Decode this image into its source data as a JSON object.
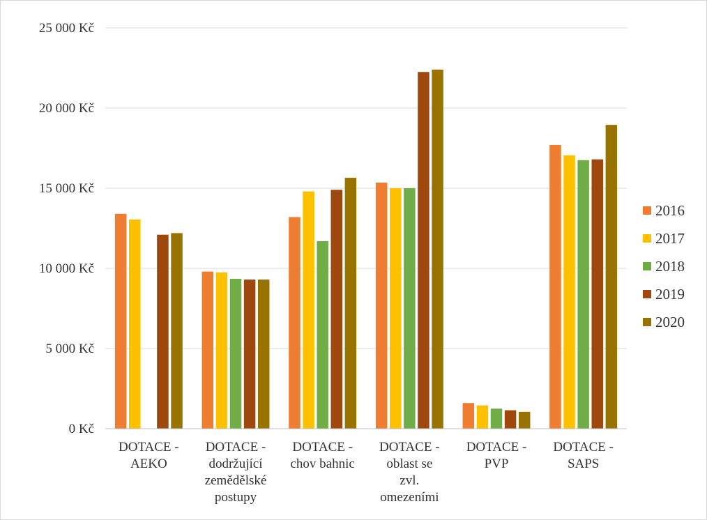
{
  "chart_data": {
    "type": "bar",
    "categories": [
      [
        "DOTACE -",
        "AEKO"
      ],
      [
        "DOTACE -",
        "dodržující",
        "zemědělské",
        "postupy"
      ],
      [
        "DOTACE -",
        "chov bahnic"
      ],
      [
        "DOTACE -",
        "oblast se",
        "zvl.",
        "omezeními"
      ],
      [
        "DOTACE -",
        "PVP"
      ],
      [
        "DOTACE -",
        "SAPS"
      ]
    ],
    "series": [
      {
        "name": "2016",
        "color": "#ed7d31",
        "values": [
          13400,
          9800,
          13200,
          15350,
          1600,
          17700
        ]
      },
      {
        "name": "2017",
        "color": "#ffc000",
        "values": [
          13050,
          9750,
          14800,
          15000,
          1450,
          17050
        ]
      },
      {
        "name": "2018",
        "color": "#70ad47",
        "values": [
          null,
          9350,
          11700,
          15000,
          1250,
          16750
        ]
      },
      {
        "name": "2019",
        "color": "#9e480e",
        "values": [
          12100,
          9300,
          14900,
          22250,
          1150,
          16800
        ]
      },
      {
        "name": "2020",
        "color": "#997300",
        "values": [
          12200,
          9300,
          15650,
          22400,
          1050,
          18950
        ]
      }
    ],
    "yticks": [
      "0 Kč",
      "5 000 Kč",
      "10 000 Kč",
      "15 000 Kč",
      "20 000 Kč",
      "25 000 Kč"
    ],
    "ylim": [
      0,
      25000
    ],
    "grid": true,
    "legend": "right",
    "title": "",
    "xlabel": "",
    "ylabel": ""
  }
}
